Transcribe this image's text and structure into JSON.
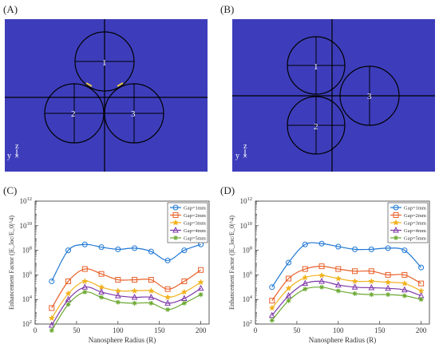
{
  "panels": {
    "A": {
      "label": "(A)",
      "sphere_labels": [
        "1",
        "2",
        "3"
      ],
      "axis_z": "z",
      "axis_y": "y"
    },
    "B": {
      "label": "(B)",
      "sphere_labels": [
        "1",
        "2",
        "3"
      ],
      "axis_z": "z",
      "axis_y": "y"
    },
    "C": {
      "label": "(C)"
    },
    "D": {
      "label": "(D)"
    }
  },
  "colors": {
    "field_bg": "#3d3dbb",
    "series": [
      "#1f77d4",
      "#e8602a",
      "#f2b21e",
      "#7d36a8",
      "#6aa830"
    ]
  },
  "series_markers": [
    "circle",
    "square",
    "star",
    "triangle",
    "asterisk"
  ],
  "chart_data": [
    {
      "panel": "C",
      "type": "line",
      "xlabel": "Nanosphere Radius (R)",
      "ylabel": "Enhancement Factor (|E_loc/E_0|^4)",
      "xlim": [
        0,
        210
      ],
      "xticks": [
        0,
        50,
        100,
        150,
        200
      ],
      "yscale": "log",
      "ylim_exp": [
        2,
        12
      ],
      "yticks_exp": [
        2,
        4,
        6,
        8,
        10,
        12
      ],
      "legend_position": "top-right",
      "x": [
        20,
        40,
        60,
        80,
        100,
        120,
        140,
        160,
        180,
        200
      ],
      "series": [
        {
          "name": "Gap=1mm",
          "values": [
            300000,
            100000000,
            300000000,
            180000000,
            120000000,
            150000000,
            80000000,
            15000000,
            100000000,
            300000000
          ]
        },
        {
          "name": "Gap=2mm",
          "values": [
            2000,
            300000,
            3000000,
            1200000,
            400000,
            400000,
            400000,
            70000,
            300000,
            2500000
          ]
        },
        {
          "name": "Gap=3mm",
          "values": [
            300,
            30000,
            300000,
            100000,
            50000,
            50000,
            50000,
            15000,
            40000,
            250000
          ]
        },
        {
          "name": "Gap=4mm",
          "values": [
            80,
            10000,
            100000,
            40000,
            20000,
            15000,
            15000,
            5000,
            12000,
            80000
          ]
        },
        {
          "name": "Gap=5mm",
          "values": [
            30,
            4000,
            40000,
            15000,
            6000,
            5000,
            5000,
            1500,
            5000,
            25000
          ]
        }
      ]
    },
    {
      "panel": "D",
      "type": "line",
      "xlabel": "Nanosphere Radius (R)",
      "ylabel": "Enhancement Factor (|E_loc/E_0|^4)",
      "xlim": [
        0,
        210
      ],
      "xticks": [
        0,
        50,
        100,
        150,
        200
      ],
      "yscale": "log",
      "ylim_exp": [
        2,
        12
      ],
      "yticks_exp": [
        2,
        4,
        6,
        8,
        10,
        12
      ],
      "legend_position": "top-right",
      "x": [
        20,
        40,
        60,
        80,
        100,
        120,
        140,
        160,
        180,
        200
      ],
      "series": [
        {
          "name": "Gap=1mm",
          "values": [
            100000,
            10000000,
            300000000,
            350000000,
            200000000,
            120000000,
            120000000,
            150000000,
            100000000,
            4000000
          ]
        },
        {
          "name": "Gap=2mm",
          "values": [
            8000,
            500000,
            3000000,
            5000000,
            3000000,
            2000000,
            2000000,
            1000000,
            1000000,
            200000
          ]
        },
        {
          "name": "Gap=3mm",
          "values": [
            2000,
            80000,
            600000,
            900000,
            500000,
            300000,
            300000,
            250000,
            200000,
            50000
          ]
        },
        {
          "name": "Gap=4mm",
          "values": [
            500,
            20000,
            200000,
            300000,
            150000,
            100000,
            90000,
            80000,
            60000,
            20000
          ]
        },
        {
          "name": "Gap=5mm",
          "values": [
            200,
            8000,
            70000,
            100000,
            50000,
            30000,
            25000,
            25000,
            20000,
            10000
          ]
        }
      ]
    }
  ]
}
